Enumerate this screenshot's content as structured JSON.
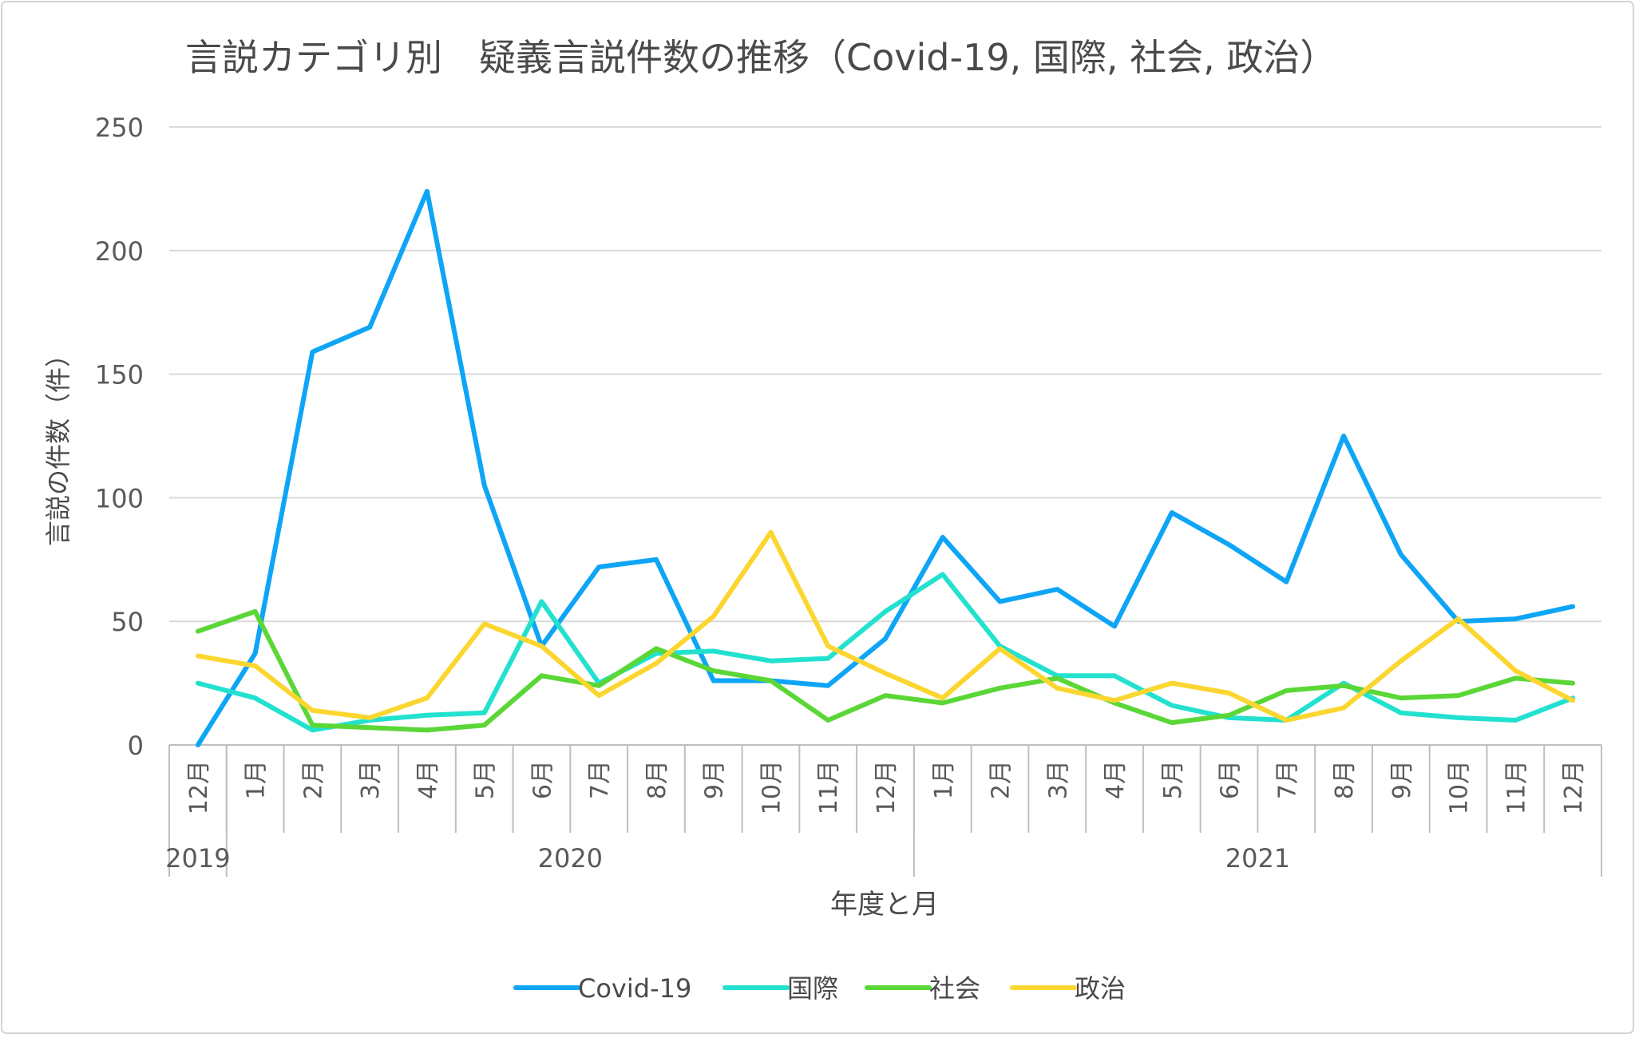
{
  "chart_data": {
    "type": "line",
    "title": "言説カテゴリ別　疑義言説件数の推移（Covid-19, 国際, 社会, 政治）",
    "xlabel": "年度と月",
    "ylabel": "言説の件数（件）",
    "ylim": [
      0,
      250
    ],
    "yticks": [
      0,
      50,
      100,
      150,
      200,
      250
    ],
    "grid": true,
    "legend_position": "bottom",
    "categories": [
      "12月",
      "1月",
      "2月",
      "3月",
      "4月",
      "5月",
      "6月",
      "7月",
      "8月",
      "9月",
      "10月",
      "11月",
      "12月",
      "1月",
      "2月",
      "3月",
      "4月",
      "5月",
      "6月",
      "7月",
      "8月",
      "9月",
      "10月",
      "11月",
      "12月"
    ],
    "year_groups": [
      {
        "label": "2019",
        "start": 0,
        "end": 0
      },
      {
        "label": "2020",
        "start": 1,
        "end": 12
      },
      {
        "label": "2021",
        "start": 13,
        "end": 24
      }
    ],
    "series": [
      {
        "name": "Covid-19",
        "color": "#0ea5f6",
        "values": [
          0,
          37,
          159,
          169,
          224,
          105,
          40,
          72,
          75,
          26,
          26,
          24,
          43,
          84,
          58,
          63,
          48,
          94,
          81,
          66,
          125,
          77,
          50,
          51,
          56
        ]
      },
      {
        "name": "国際",
        "color": "#22e1cf",
        "values": [
          25,
          19,
          6,
          10,
          12,
          13,
          58,
          25,
          37,
          38,
          34,
          35,
          54,
          69,
          40,
          28,
          28,
          16,
          11,
          10,
          25,
          13,
          11,
          10,
          19
        ]
      },
      {
        "name": "社会",
        "color": "#5ad737",
        "values": [
          46,
          54,
          8,
          7,
          6,
          8,
          28,
          24,
          39,
          30,
          26,
          10,
          20,
          17,
          23,
          27,
          17,
          9,
          12,
          22,
          24,
          19,
          20,
          27,
          25
        ]
      },
      {
        "name": "政治",
        "color": "#fcd630",
        "values": [
          36,
          32,
          14,
          11,
          19,
          49,
          40,
          20,
          33,
          52,
          86,
          40,
          29,
          19,
          39,
          23,
          18,
          25,
          21,
          10,
          15,
          34,
          51,
          30,
          18
        ]
      }
    ]
  }
}
